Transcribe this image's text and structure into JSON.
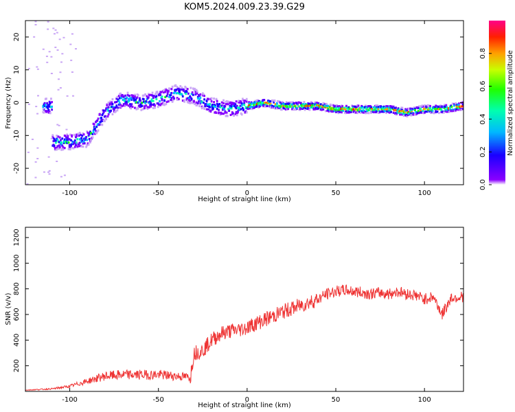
{
  "title": "KOM5.2024.009.23.39.G29",
  "colors": {
    "line": "#ee3333",
    "axis": "#000000",
    "background": "#ffffff"
  },
  "chart_data": [
    {
      "type": "heatmap",
      "xlabel": "Height of straight line (km)",
      "ylabel": "Frequency (Hz)",
      "xlim": [
        -125,
        122
      ],
      "ylim": [
        -25,
        25
      ],
      "xticks": [
        -100,
        -50,
        0,
        50,
        100
      ],
      "yticks": [
        -20,
        -10,
        0,
        10,
        20
      ],
      "colorbar": {
        "label": "Normalized spectral amplitude",
        "range": [
          0,
          1
        ],
        "ticks": [
          0.0,
          0.2,
          0.4,
          0.6,
          0.8
        ],
        "colormap": "hsv-rainbow (purple to red)"
      },
      "ridge": {
        "description_points": [
          {
            "x": -110,
            "y": -12
          },
          {
            "x": -100,
            "y": -12
          },
          {
            "x": -90,
            "y": -11
          },
          {
            "x": -80,
            "y": -3
          },
          {
            "x": -70,
            "y": 1
          },
          {
            "x": -60,
            "y": 0
          },
          {
            "x": -50,
            "y": 1
          },
          {
            "x": -40,
            "y": 3
          },
          {
            "x": -30,
            "y": 2
          },
          {
            "x": -20,
            "y": -1
          },
          {
            "x": -10,
            "y": -2
          },
          {
            "x": 0,
            "y": -1
          },
          {
            "x": 10,
            "y": 0
          },
          {
            "x": 20,
            "y": -1
          },
          {
            "x": 30,
            "y": -1
          },
          {
            "x": 40,
            "y": -1
          },
          {
            "x": 50,
            "y": -2
          },
          {
            "x": 60,
            "y": -2
          },
          {
            "x": 70,
            "y": -2
          },
          {
            "x": 80,
            "y": -2
          },
          {
            "x": 90,
            "y": -3
          },
          {
            "x": 100,
            "y": -2
          },
          {
            "x": 110,
            "y": -2
          },
          {
            "x": 122,
            "y": -1
          }
        ]
      }
    },
    {
      "type": "line",
      "xlabel": "Height of straight line (km)",
      "ylabel": "SNR (v/v)",
      "xlim": [
        -125,
        122
      ],
      "ylim": [
        0,
        1280
      ],
      "xticks": [
        -100,
        -50,
        0,
        50,
        100
      ],
      "yticks": [
        200,
        400,
        600,
        800,
        1000,
        1200
      ],
      "series": [
        {
          "x": [
            -125,
            -110,
            -100,
            -90,
            -80,
            -70,
            -60,
            -50,
            -40,
            -32,
            -30,
            -25,
            -20,
            -15,
            -10,
            -5,
            0,
            10,
            20,
            30,
            40,
            45,
            50,
            55,
            60,
            65,
            70,
            75,
            80,
            85,
            90,
            95,
            100,
            105,
            110,
            115,
            122
          ],
          "y": [
            10,
            20,
            40,
            80,
            120,
            130,
            130,
            130,
            120,
            110,
            300,
            320,
            400,
            450,
            470,
            480,
            500,
            560,
            620,
            670,
            720,
            760,
            780,
            790,
            780,
            770,
            760,
            770,
            760,
            780,
            760,
            750,
            720,
            740,
            600,
            730,
            740
          ]
        }
      ]
    }
  ]
}
